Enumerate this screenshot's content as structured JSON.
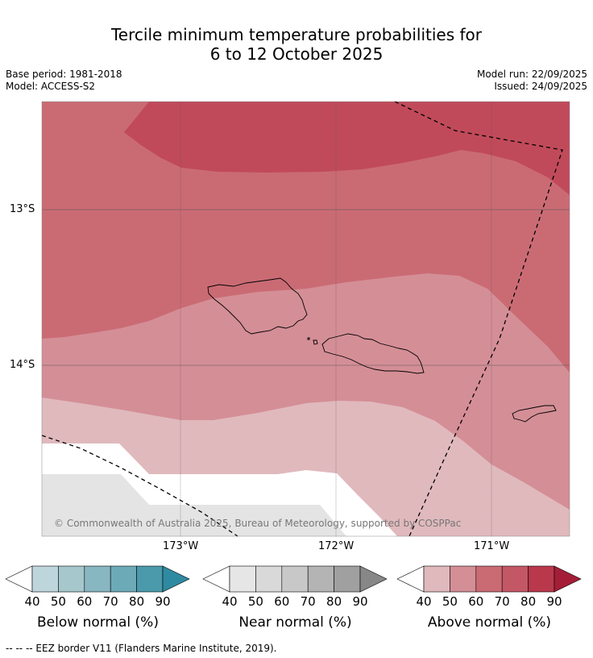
{
  "title_line1": "Tercile minimum temperature probabilities for",
  "title_line2": "6 to 12 October 2025",
  "base_period": "Base period: 1981-2018",
  "model": "Model: ACCESS-S2",
  "model_run": "Model run: 22/09/2025",
  "issued": "Issued: 24/09/2025",
  "latitude_labels": [
    "13°S",
    "14°S"
  ],
  "longitude_labels": [
    "173°W",
    "172°W",
    "171°W"
  ],
  "copyright": "© Commonwealth of Australia 2025, Bureau of Meteorology, supported by COSPPac",
  "colorbars": [
    {
      "label": "Below normal (%)",
      "ticks": [
        "40",
        "50",
        "60",
        "70",
        "80",
        "90"
      ],
      "colors": [
        "#bfd5dc",
        "#a6c7cc",
        "#88b6c1",
        "#6daab7",
        "#4a9aab",
        "#2e8aa1"
      ]
    },
    {
      "label": "Near normal (%)",
      "ticks": [
        "40",
        "50",
        "60",
        "70",
        "80",
        "90"
      ],
      "colors": [
        "#e6e6e6",
        "#d9d9d9",
        "#c8c8c8",
        "#b4b4b4",
        "#a0a0a0",
        "#878787"
      ]
    },
    {
      "label": "Above normal (%)",
      "ticks": [
        "40",
        "50",
        "60",
        "70",
        "80",
        "90"
      ],
      "colors": [
        "#e0b9bd",
        "#d48e96",
        "#ca6b74",
        "#c45766",
        "#b9384c",
        "#a51e38"
      ]
    }
  ],
  "footnote": "--  --  -- EEZ border V11 (Flanders Marine Institute, 2019).",
  "map_colors": {
    "above_80": "#c04a5a",
    "above_70": "#ca6b74",
    "above_60": "#d48e96",
    "above_50": "#e0b9bd",
    "near_50": "#e4e4e4"
  }
}
